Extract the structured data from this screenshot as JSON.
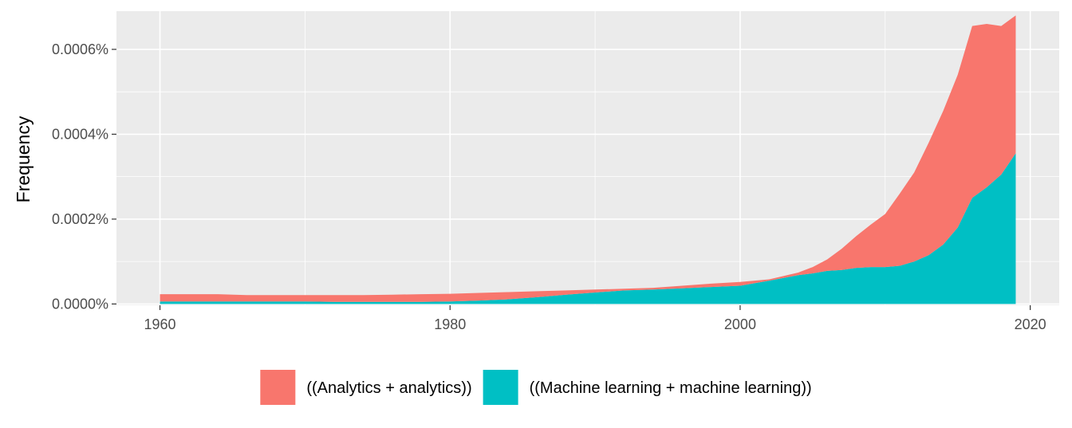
{
  "chart_data": {
    "type": "area",
    "stacked": true,
    "title": "",
    "xlabel": "",
    "ylabel": "Frequency",
    "xlim": [
      1957,
      2022
    ],
    "ylim": [
      -3e-06,
      0.00069
    ],
    "x_ticks": [
      1960,
      1980,
      2000,
      2020
    ],
    "y_ticks": [
      0,
      0.0002,
      0.0004,
      0.0006
    ],
    "y_tick_labels": [
      "0.0000%",
      "0.0002%",
      "0.0004%",
      "0.0006%"
    ],
    "grid": true,
    "legend_position": "bottom",
    "panel_background": "#ebebeb",
    "grid_major_color": "#ffffff",
    "x": [
      1960,
      1962,
      1964,
      1966,
      1968,
      1970,
      1972,
      1974,
      1976,
      1978,
      1980,
      1982,
      1984,
      1986,
      1988,
      1990,
      1992,
      1994,
      1996,
      1998,
      2000,
      2002,
      2004,
      2005,
      2006,
      2007,
      2008,
      2009,
      2010,
      2011,
      2012,
      2013,
      2014,
      2015,
      2016,
      2017,
      2018,
      2019
    ],
    "series": [
      {
        "name": "((Analytics + analytics))",
        "color": "#f8766d",
        "values": [
          1.7e-05,
          1.7e-05,
          1.7e-05,
          1.5e-05,
          1.5e-05,
          1.5e-05,
          1.6e-05,
          1.6e-05,
          1.7e-05,
          1.8e-05,
          1.8e-05,
          1.8e-05,
          1.7e-05,
          1.4e-05,
          1e-05,
          7e-06,
          4e-06,
          4e-06,
          6e-06,
          8e-06,
          9e-06,
          3e-06,
          6e-06,
          1.5e-05,
          2.7e-05,
          5e-05,
          7.5e-05,
          0.0001,
          0.000125,
          0.00017,
          0.00021,
          0.000265,
          0.000315,
          0.00036,
          0.000405,
          0.000385,
          0.00035,
          0.000325
        ]
      },
      {
        "name": "((Machine learning + machine learning))",
        "color": "#00bfc4",
        "values": [
          6e-06,
          6e-06,
          6e-06,
          6e-06,
          6e-06,
          6e-06,
          5e-06,
          5e-06,
          5e-06,
          5e-06,
          6e-06,
          8e-06,
          1.1e-05,
          1.6e-05,
          2.2e-05,
          2.7e-05,
          3.2e-05,
          3.4e-05,
          3.7e-05,
          4e-05,
          4.3e-05,
          5.5e-05,
          6.8e-05,
          7.2e-05,
          7.8e-05,
          8e-05,
          8.5e-05,
          8.7e-05,
          8.7e-05,
          9e-05,
          0.0001,
          0.000115,
          0.00014,
          0.00018,
          0.00025,
          0.000275,
          0.000305,
          0.000355
        ]
      }
    ]
  }
}
